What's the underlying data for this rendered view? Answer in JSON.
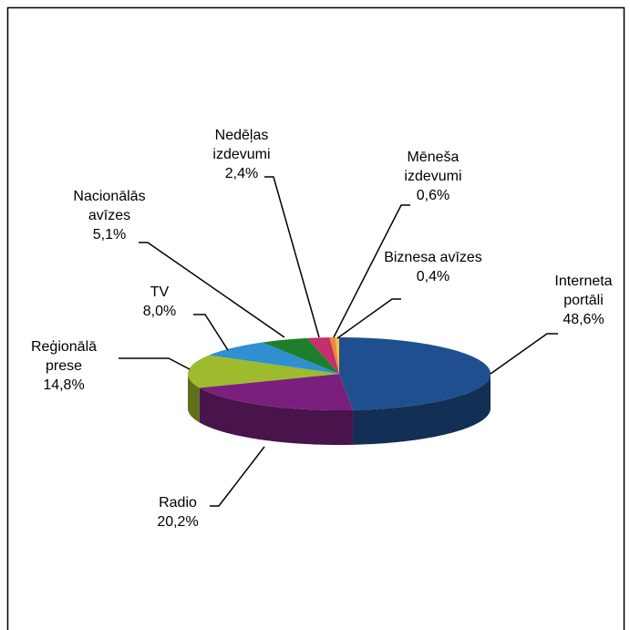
{
  "chart_data": {
    "type": "pie3d",
    "categories": [
      "Interneta portāli",
      "Radio",
      "Reģionālā prese",
      "TV",
      "Nacionālās avīzes",
      "Nedēļas izdevumi",
      "Mēneša izdevumi",
      "Biznesa avīzes"
    ],
    "values": [
      48.6,
      20.2,
      14.8,
      8.0,
      5.1,
      2.4,
      0.6,
      0.4
    ],
    "value_labels": [
      "48,6%",
      "20,2%",
      "14,8%",
      "8,0%",
      "5,1%",
      "2,4%",
      "0,6%",
      "0,4%"
    ],
    "colors": [
      "#1f4f8f",
      "#7a1f7d",
      "#9dbb2c",
      "#2f8fd0",
      "#1d7f2c",
      "#c4306c",
      "#e98a3a",
      "#f2c24a"
    ]
  }
}
